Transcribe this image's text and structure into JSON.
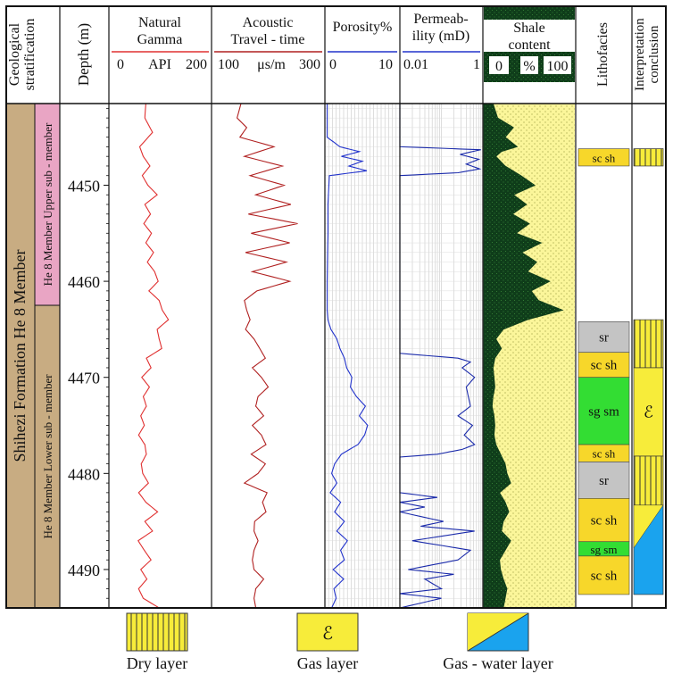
{
  "headers": {
    "geo": [
      "Geological",
      "stratification"
    ],
    "depth": "Depth (m)",
    "gamma": {
      "title": [
        "Natural",
        "Gamma"
      ],
      "scale": [
        "0",
        "API",
        "200"
      ]
    },
    "acoustic": {
      "title": [
        "Acoustic",
        "Travel - time"
      ],
      "scale": [
        "100",
        "μs/m",
        "300"
      ]
    },
    "porosity": {
      "title": "Porosity%",
      "scale": [
        "0",
        "10"
      ]
    },
    "perm": {
      "title": [
        "Permeab-",
        "ility (mD)"
      ],
      "scale": [
        "0.01",
        "1"
      ]
    },
    "shale": {
      "title": [
        "Shale",
        "content"
      ],
      "scale": [
        "0",
        "%",
        "100"
      ]
    },
    "litho": "Lithofacies",
    "interp": [
      "Interpretation",
      "conclusion"
    ]
  },
  "strat": {
    "formation": "Shihezi Formation He 8 Member",
    "upper": "He 8 Member Upper sub - member",
    "lower": "He 8 Member Lower sub - member",
    "colors": {
      "upper": "#e9a5c4",
      "lower": "#c8ac82"
    }
  },
  "legend": {
    "dry": "Dry layer",
    "gas": "Gas layer",
    "gaswater": "Gas - water layer"
  },
  "chart_data": {
    "type": "line",
    "depth_range": [
      4441.5,
      4494.0
    ],
    "depth_ticks": [
      4450,
      4460,
      4470,
      4480,
      4490
    ],
    "scales": {
      "gamma": [
        0,
        200
      ],
      "acoustic": [
        100,
        300
      ],
      "porosity": [
        0,
        10
      ],
      "perm_log10": [
        -2,
        0
      ],
      "shale": [
        0,
        100
      ]
    },
    "series": [
      {
        "key": "gamma",
        "color": "#e03030",
        "depth": [
          4441.5,
          4443,
          4444.5,
          4446,
          4447,
          4448,
          4449,
          4450,
          4451,
          4452,
          4453,
          4454,
          4455,
          4456,
          4457,
          4458,
          4459,
          4460,
          4461,
          4462,
          4463,
          4464,
          4465,
          4466,
          4467,
          4468,
          4469,
          4470,
          4471,
          4472,
          4473,
          4474,
          4475,
          4476,
          4477,
          4478,
          4479,
          4480,
          4481,
          4482,
          4483,
          4484,
          4485,
          4486,
          4487,
          4488,
          4489,
          4490,
          4491,
          4492,
          4493,
          4494
        ],
        "value": [
          72,
          70,
          85,
          60,
          67,
          80,
          65,
          76,
          94,
          70,
          81,
          68,
          83,
          72,
          87,
          75,
          89,
          96,
          78,
          98,
          104,
          116,
          94,
          98,
          103,
          73,
          82,
          64,
          79,
          67,
          73,
          62,
          69,
          58,
          70,
          73,
          63,
          66,
          77,
          58,
          72,
          95,
          70,
          85,
          57,
          69,
          82,
          62,
          74,
          58,
          67,
          98
        ]
      },
      {
        "key": "acoustic",
        "color": "#b02020",
        "depth": [
          4441.5,
          4443,
          4444,
          4445,
          4446,
          4447,
          4448,
          4449,
          4450,
          4451,
          4452,
          4453,
          4454,
          4455,
          4456,
          4457,
          4458,
          4459,
          4460,
          4461,
          4462,
          4463,
          4464,
          4465,
          4466,
          4467,
          4468,
          4469,
          4470,
          4471,
          4472,
          4473,
          4474,
          4475,
          4476,
          4477,
          4478,
          4479,
          4480,
          4481,
          4482,
          4483,
          4484,
          4485,
          4486,
          4487,
          4488,
          4489,
          4490,
          4491,
          4492,
          4493,
          4494
        ],
        "value": [
          152,
          145,
          162,
          150,
          210,
          158,
          225,
          168,
          228,
          178,
          240,
          165,
          252,
          170,
          238,
          160,
          232,
          172,
          238,
          180,
          158,
          162,
          168,
          160,
          175,
          185,
          195,
          172,
          188,
          200,
          182,
          178,
          192,
          172,
          188,
          196,
          170,
          195,
          182,
          158,
          198,
          190,
          196,
          176,
          175,
          182,
          175,
          172,
          175,
          192,
          178,
          175,
          178
        ]
      },
      {
        "key": "porosity",
        "color": "#2233cc",
        "depth": [
          4441.5,
          4445,
          4446,
          4446.5,
          4447,
          4447.5,
          4448,
          4448.5,
          4449,
          4452,
          4455,
          4460,
          4463,
          4464,
          4465,
          4466,
          4467,
          4468,
          4469,
          4470,
          4471,
          4472,
          4473,
          4474,
          4475,
          4476,
          4477,
          4478,
          4479,
          4480,
          4481,
          4482,
          4483,
          4484,
          4485,
          4486,
          4487,
          4488,
          4489,
          4490,
          4491,
          4492,
          4493,
          4494
        ],
        "value": [
          0.3,
          0.3,
          2.0,
          4.6,
          2.2,
          5.0,
          3.2,
          5.6,
          0.6,
          0.4,
          0.4,
          0.3,
          0.3,
          0.4,
          0.8,
          1.6,
          2.0,
          2.6,
          2.9,
          3.6,
          3.4,
          4.2,
          5.4,
          4.6,
          5.7,
          5.3,
          4.4,
          2.2,
          1.3,
          0.9,
          1.6,
          0.7,
          2.1,
          1.3,
          2.6,
          1.6,
          3.0,
          2.1,
          2.6,
          1.1,
          2.5,
          1.2,
          1.5,
          0.9
        ]
      },
      {
        "key": "perm",
        "color": "#1a2aaa",
        "depth": [
          4441.5,
          4446,
          4446.3,
          4446.8,
          4447.3,
          4447.8,
          4448.3,
          4448.7,
          4449,
          4455,
          4467.5,
          4468,
          4468.4,
          4469,
          4470,
          4471,
          4472,
          4473,
          4474,
          4475,
          4476,
          4477,
          4477.5,
          4478,
          4478.3,
          4479,
          4482,
          4482.5,
          4483,
          4483.5,
          4484,
          4485,
          4485.5,
          4486,
          4487,
          4488,
          4489,
          4490,
          4490.5,
          4491,
          4492,
          4492.5,
          4493,
          4494
        ],
        "value": [
          -2,
          -2,
          -0.05,
          -0.55,
          -0.1,
          -0.4,
          -0.08,
          -0.6,
          -2,
          -2,
          -2,
          -0.6,
          -0.3,
          -0.5,
          -0.2,
          -0.4,
          -0.35,
          -0.3,
          -0.6,
          -0.25,
          -0.45,
          -0.2,
          -0.5,
          -1.1,
          -2,
          -2,
          -2,
          -1.1,
          -2,
          -1.4,
          -2,
          -0.95,
          -1.5,
          -0.2,
          -1.7,
          -0.3,
          -0.6,
          -1.8,
          -0.7,
          -1.4,
          -1.0,
          -2,
          -1.0,
          -2
        ]
      },
      {
        "key": "shale",
        "color": "#0f3d1a",
        "depth": [
          4441.5,
          4443,
          4444,
          4445,
          4446,
          4446.5,
          4447,
          4448,
          4449,
          4450,
          4451,
          4452,
          4453,
          4454,
          4455,
          4456,
          4457,
          4458,
          4459,
          4460,
          4461,
          4462,
          4463,
          4464,
          4465,
          4466,
          4467,
          4468,
          4469,
          4470,
          4471,
          4472,
          4473,
          4474,
          4475,
          4476,
          4477,
          4478,
          4479,
          4480,
          4481,
          4482,
          4483,
          4484,
          4485,
          4486,
          4487,
          4488,
          4489,
          4490,
          4491,
          4492,
          4493,
          4494
        ],
        "value": [
          11,
          16,
          33,
          24,
          37,
          20,
          14,
          24,
          41,
          56,
          33,
          47,
          32,
          50,
          36,
          63,
          42,
          58,
          48,
          72,
          52,
          60,
          86,
          48,
          22,
          14,
          20,
          13,
          11,
          12,
          13,
          11,
          10,
          12,
          13,
          12,
          14,
          19,
          24,
          26,
          30,
          18,
          24,
          28,
          22,
          20,
          30,
          24,
          18,
          19,
          22,
          26,
          24,
          22
        ]
      }
    ],
    "lithofacies": [
      {
        "top": 4446.2,
        "base": 4448.0,
        "label": "sc sh",
        "color": "#f7d72a"
      },
      {
        "top": 4464.2,
        "base": 4467.4,
        "label": "sr",
        "color": "#c4c4c4"
      },
      {
        "top": 4467.4,
        "base": 4470.0,
        "label": "sc sh",
        "color": "#f7d72a"
      },
      {
        "top": 4470.0,
        "base": 4477.0,
        "label": "sg sm",
        "color": "#33dd33"
      },
      {
        "top": 4477.0,
        "base": 4478.8,
        "label": "sc sh",
        "color": "#f7d72a"
      },
      {
        "top": 4478.8,
        "base": 4482.6,
        "label": "sr",
        "color": "#c4c4c4"
      },
      {
        "top": 4482.6,
        "base": 4487.1,
        "label": "sc sh",
        "color": "#f7d72a"
      },
      {
        "top": 4487.1,
        "base": 4488.6,
        "label": "sg sm",
        "color": "#33dd33"
      },
      {
        "top": 4488.6,
        "base": 4492.6,
        "label": "sc sh",
        "color": "#f7d72a"
      }
    ],
    "interpretation": [
      {
        "top": 4446.2,
        "base": 4448.0,
        "type": "dry"
      },
      {
        "top": 4464.0,
        "base": 4469.0,
        "type": "dry"
      },
      {
        "top": 4469.0,
        "base": 4478.2,
        "type": "gas"
      },
      {
        "top": 4478.2,
        "base": 4483.3,
        "type": "dry"
      },
      {
        "top": 4483.3,
        "base": 4492.6,
        "type": "gaswater"
      }
    ]
  }
}
